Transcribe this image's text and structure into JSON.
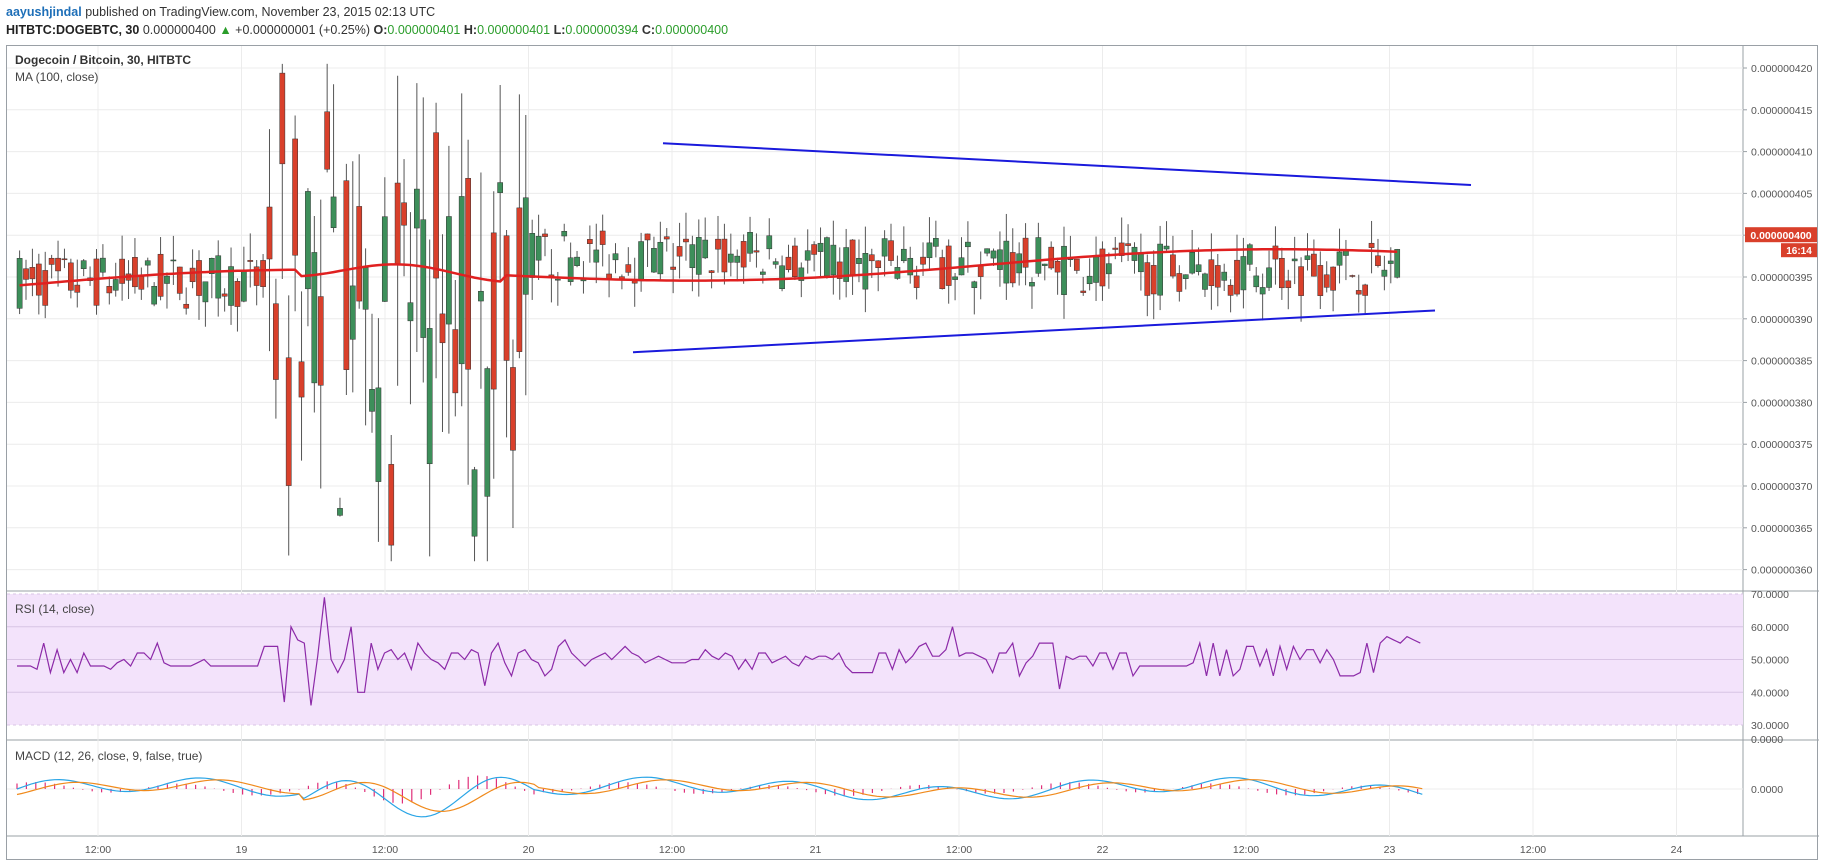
{
  "header": {
    "author": "aayushjindal",
    "published_text": " published on TradingView.com, November 23, 2015 02:13 UTC",
    "symbol_line": "HITBTC:DOGEBTC, 30",
    "last": "0.000000400",
    "change_arrow": "▲",
    "change": "+0.000000001 (+0.25%)",
    "o_label": "O:",
    "o_value": "0.000000401",
    "h_label": "H:",
    "h_value": "0.000000401",
    "l_label": "L:",
    "l_value": "0.000000394",
    "c_label": "C:",
    "c_value": "0.000000400"
  },
  "main_pane": {
    "title": "Dogecoin / Bitcoin, 30, HITBTC",
    "indicator": "MA (100, close)",
    "price_badge": "0.000000400",
    "timer_badge": "16:14"
  },
  "rsi_pane": {
    "title": "RSI (14, close)"
  },
  "macd_pane": {
    "title": "MACD (12, 26, close, 9, false, true)"
  },
  "colors": {
    "up": "#3d8f5a",
    "down": "#d9402b",
    "ma": "#e02020",
    "trendline": "#1a1adc",
    "rsi": "#8c2aa8",
    "rsi_band": "#f3e3fb",
    "macd": "#2aa5e6",
    "signal": "#f08a1c",
    "hist": "#e0307a"
  },
  "chart_data": {
    "type": "candlestick",
    "y_axis": {
      "range": [
        3.57e-07,
        4.22e-07
      ],
      "ticks": [
        "0.000000420",
        "0.000000415",
        "0.000000410",
        "0.000000405",
        "0.000000400",
        "0.000000395",
        "0.000000390",
        "0.000000385",
        "0.000000380",
        "0.000000375",
        "0.000000370",
        "0.000000365",
        "0.000000360"
      ]
    },
    "x_axis": {
      "ticks": [
        "12:00",
        "19",
        "12:00",
        "20",
        "12:00",
        "21",
        "12:00",
        "22",
        "12:00",
        "23",
        "12:00",
        "24"
      ]
    },
    "trendlines": [
      {
        "name": "upper",
        "from": [
          0.2,
          4.11e-07
        ],
        "to": [
          0.8,
          4.06e-07
        ]
      },
      {
        "name": "lower",
        "from": [
          0.18,
          3.86e-07
        ],
        "to": [
          0.76,
          3.91e-07
        ]
      }
    ],
    "rsi": {
      "ticks": [
        "70.0000",
        "60.0000",
        "50.0000",
        "40.0000",
        "30.0000"
      ],
      "range": [
        30,
        70
      ],
      "values": [
        48,
        48,
        48,
        47,
        55,
        46,
        53,
        46,
        50,
        46,
        52,
        48,
        48,
        48,
        47,
        49,
        50,
        48,
        52,
        52,
        50,
        55,
        49,
        48,
        48,
        48,
        48,
        49,
        50,
        48,
        48,
        48,
        48,
        48,
        48,
        48,
        48,
        54,
        54,
        54,
        37,
        60,
        56,
        55,
        36,
        51,
        69,
        50,
        46,
        50,
        60,
        40,
        40,
        55,
        47,
        52,
        53,
        50,
        52,
        47,
        55,
        52,
        50,
        49,
        47,
        52,
        52,
        50,
        53,
        52,
        42,
        52,
        55,
        49,
        45,
        52,
        53,
        50,
        49,
        45,
        47,
        54,
        56,
        52,
        50,
        48,
        50,
        51,
        52,
        50,
        52,
        54,
        52,
        51,
        49,
        50,
        51,
        50,
        49,
        49,
        49,
        50,
        50,
        53,
        51,
        50,
        52,
        51,
        47,
        50,
        47,
        52,
        52,
        49,
        50,
        51,
        49,
        48,
        51,
        50,
        51,
        51,
        50,
        52,
        48,
        46,
        46,
        46,
        46,
        52,
        52,
        47,
        53,
        49,
        51,
        54,
        55,
        51,
        51,
        53,
        60,
        51,
        52,
        52,
        51,
        50,
        46,
        52,
        52,
        55,
        45,
        49,
        51,
        55,
        55,
        55,
        41,
        51,
        50,
        51,
        51,
        48,
        52,
        52,
        47,
        52,
        52,
        45,
        48,
        48,
        48,
        48,
        48,
        48,
        48,
        48,
        49,
        55,
        45,
        55,
        45,
        53,
        45,
        47,
        54,
        54,
        48,
        53,
        45,
        54,
        47,
        54,
        50,
        53,
        53,
        49,
        53,
        50,
        45,
        45,
        45,
        46,
        55,
        46,
        55,
        57,
        56,
        55,
        57,
        56,
        55
      ]
    },
    "macd": {
      "ticks": [
        "0.0000"
      ],
      "zero_line": 0
    }
  }
}
